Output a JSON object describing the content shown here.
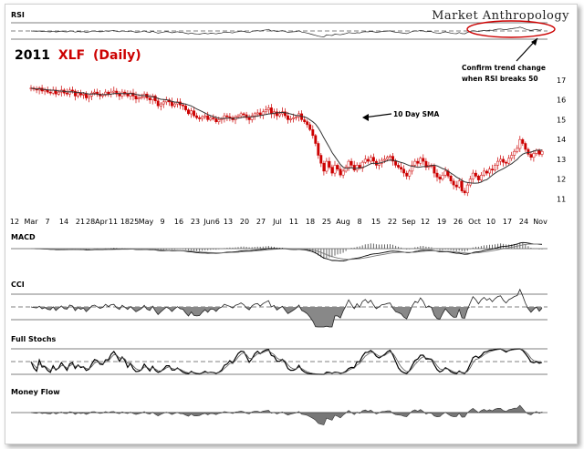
{
  "header": {
    "brand": "Market Anthropology"
  },
  "price_panel": {
    "title_year": "2011",
    "title_symbol": "XLF",
    "title_period": "(Daily)",
    "annotation_sma": "10 Day SMA",
    "annotation_rsi_line1": "Confirm trend change",
    "annotation_rsi_line2": "when RSI breaks 50",
    "y_ticks": [
      "17",
      "16",
      "15",
      "14",
      "13",
      "12",
      "11"
    ],
    "x_ticks": [
      "12",
      "Mar",
      "7",
      "14",
      "21",
      "28Apr",
      "11",
      "1825",
      "May",
      "9",
      "16",
      "23",
      "Jun6",
      "13",
      "20",
      "27",
      "Jul",
      "11",
      "18",
      "25",
      "Aug",
      "8",
      "15",
      "22",
      "Sep",
      "12",
      "19",
      "26",
      "Oct",
      "10",
      "17",
      "24",
      "Nov"
    ]
  },
  "panels": {
    "rsi": "RSI",
    "macd": "MACD",
    "cci": "CCI",
    "stoch": "Full Stochs",
    "mflow": "Money Flow"
  },
  "colors": {
    "up": "#cc0000",
    "down": "#cc0000",
    "accent": "#cc0000",
    "line": "#000000",
    "histogram": "#666666"
  },
  "chart_data": {
    "type": "candlestick",
    "symbol": "XLF",
    "ylim": [
      10.6,
      17.6
    ],
    "x_index_range": [
      0,
      180
    ],
    "close": [
      16.6,
      16.55,
      16.5,
      16.6,
      16.45,
      16.5,
      16.4,
      16.35,
      16.5,
      16.3,
      16.4,
      16.5,
      16.35,
      16.3,
      16.5,
      16.45,
      16.2,
      16.35,
      16.25,
      16.3,
      16.1,
      16.2,
      16.35,
      16.4,
      16.3,
      16.2,
      16.25,
      16.4,
      16.3,
      16.4,
      16.45,
      16.3,
      16.2,
      16.4,
      16.3,
      16.2,
      16.35,
      16.2,
      16.05,
      16.1,
      16.15,
      16.3,
      16.1,
      16.0,
      16.2,
      15.95,
      15.7,
      15.8,
      15.9,
      16.0,
      15.9,
      15.7,
      15.8,
      15.9,
      15.75,
      15.7,
      15.5,
      15.3,
      15.45,
      15.2,
      15.1,
      15.05,
      15.15,
      15.2,
      15.0,
      15.1,
      15.05,
      14.9,
      15.0,
      15.05,
      15.2,
      15.15,
      15.1,
      15.0,
      15.15,
      15.2,
      15.3,
      15.25,
      15.1,
      15.0,
      15.2,
      15.3,
      15.35,
      15.25,
      15.4,
      15.5,
      15.6,
      15.3,
      15.4,
      15.2,
      15.3,
      15.4,
      15.2,
      15.0,
      15.05,
      15.1,
      15.15,
      15.3,
      15.0,
      14.9,
      14.75,
      14.5,
      14.2,
      13.8,
      13.2,
      12.8,
      12.4,
      12.9,
      12.6,
      12.3,
      12.7,
      12.5,
      12.2,
      12.4,
      12.6,
      12.9,
      12.7,
      12.45,
      12.7,
      12.55,
      12.85,
      13.0,
      12.9,
      13.1,
      12.9,
      12.7,
      12.8,
      12.95,
      13.0,
      13.1,
      13.15,
      12.9,
      12.7,
      12.6,
      12.5,
      12.3,
      12.15,
      12.4,
      12.7,
      12.9,
      12.8,
      13.05,
      12.9,
      12.6,
      12.7,
      12.65,
      12.3,
      12.1,
      12.0,
      12.2,
      12.4,
      12.15,
      11.9,
      11.7,
      11.6,
      11.9,
      11.4,
      11.3,
      11.7,
      12.0,
      12.3,
      12.15,
      11.95,
      12.2,
      12.4,
      12.3,
      12.5,
      12.45,
      12.7,
      12.9,
      13.0,
      12.85,
      12.8,
      13.05,
      13.2,
      13.4,
      13.55,
      14.0,
      13.8,
      13.5,
      13.25,
      13.1,
      13.3,
      13.45,
      13.25,
      13.4
    ],
    "sma10_note": "10 Day SMA overlay",
    "indicator_levels": {
      "rsi": [
        50
      ],
      "cci": [
        -100,
        0,
        100
      ],
      "stoch": [
        20,
        50,
        80
      ],
      "money_flow": [
        0
      ]
    }
  }
}
